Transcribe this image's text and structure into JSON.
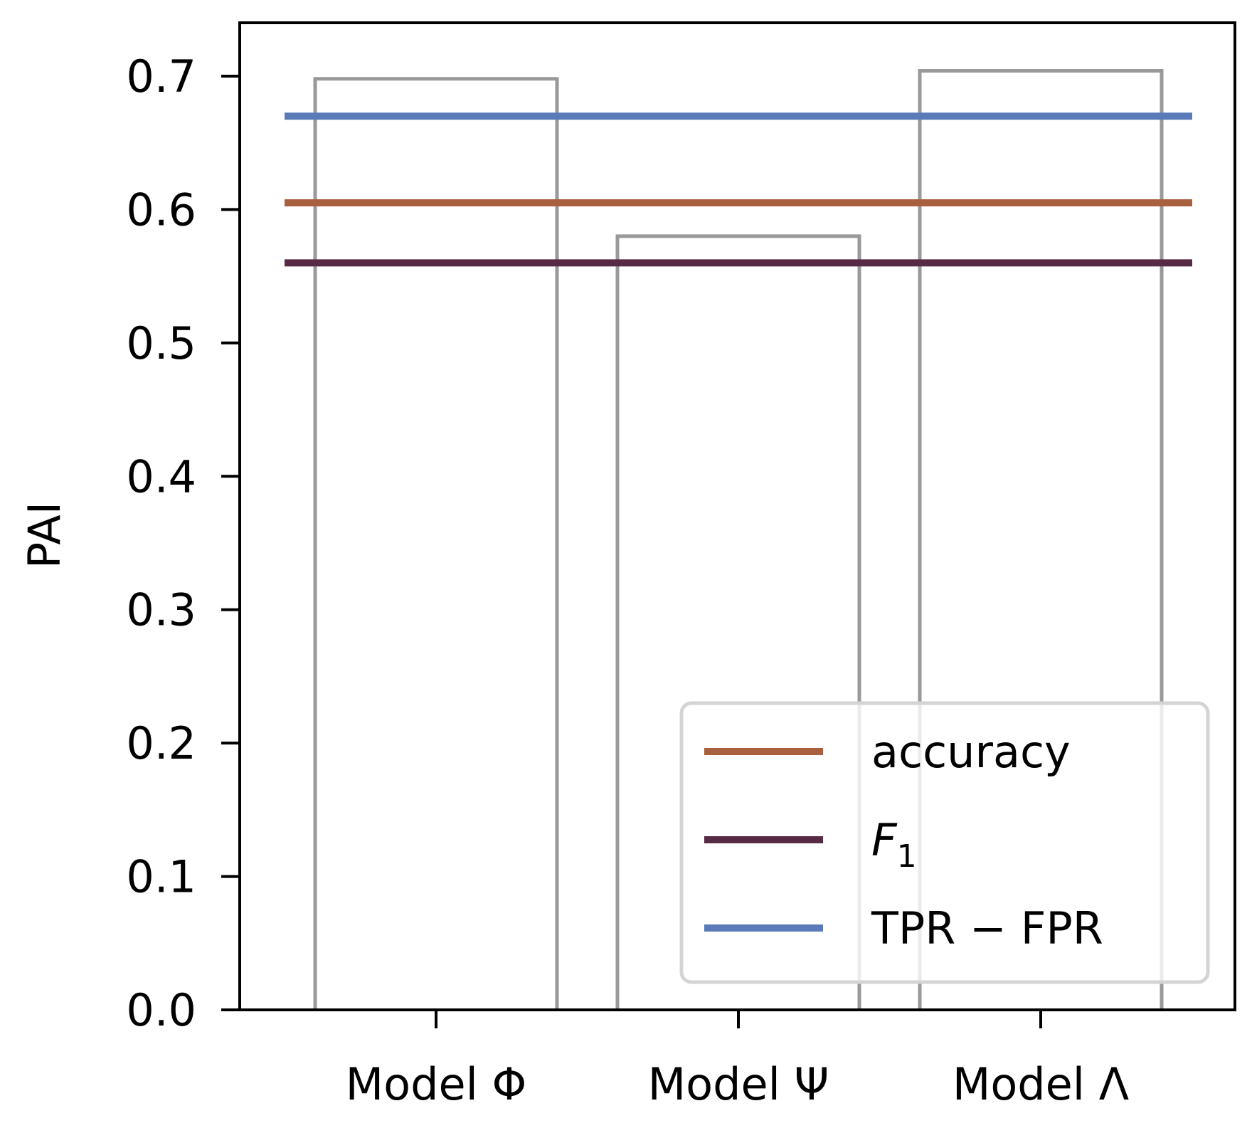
{
  "chart_data": {
    "type": "bar",
    "categories": [
      "Model Φ",
      "Model Ψ",
      "Model Λ"
    ],
    "values": [
      0.698,
      0.58,
      0.704
    ],
    "title": "",
    "xlabel": "",
    "ylabel": "PAI",
    "ylim": [
      0,
      0.74
    ],
    "yticks": [
      "0.0",
      "0.1",
      "0.2",
      "0.3",
      "0.4",
      "0.5",
      "0.6",
      "0.7"
    ],
    "bar_style": "unfilled outline",
    "bar_color": "#999999",
    "reference_lines": [
      {
        "name": "accuracy",
        "value": 0.605,
        "color": "#a9603f"
      },
      {
        "name": "F",
        "subscript": "1",
        "value": 0.56,
        "color": "#572a45"
      },
      {
        "name": "TPR − FPR",
        "value": 0.67,
        "color": "#5a7ab8"
      }
    ],
    "legend_position": "lower-right",
    "grid": false
  }
}
